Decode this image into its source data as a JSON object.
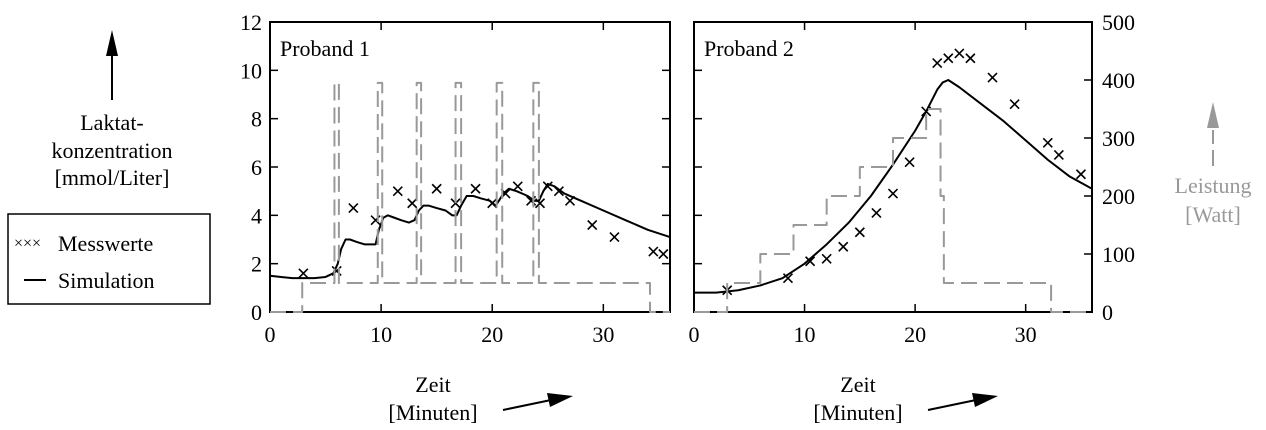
{
  "left_annotation": {
    "ylabel_lines": [
      "Laktat-",
      "konzentration",
      "[mmol/Liter]"
    ]
  },
  "legend": {
    "measured_marker": "×××",
    "measured_label": "Messwerte",
    "simulation_label": "Simulation"
  },
  "right_annotation": {
    "ylabel_lines": [
      "Leistung",
      "[Watt]"
    ]
  },
  "colors": {
    "lactate": "#000000",
    "power": "#999999",
    "axes": "#000000"
  },
  "chart_data": [
    {
      "type": "line",
      "panel_title": "Proband 1",
      "xlabel_lines": [
        "Zeit",
        "[Minuten]"
      ],
      "xlim": [
        0,
        36
      ],
      "xticks": [
        0,
        10,
        20,
        30
      ],
      "ylim_left": [
        0,
        12
      ],
      "yticks_left": [
        0,
        2,
        4,
        6,
        8,
        10,
        12
      ],
      "ylim_right": [
        0,
        500
      ],
      "yticks_right": [
        0,
        100,
        200,
        300,
        400,
        500
      ],
      "series": [
        {
          "name": "Messwerte",
          "axis": "left",
          "style": "markers-x",
          "x": [
            3,
            6,
            7.5,
            9.5,
            11.5,
            12.8,
            15,
            16.7,
            18.5,
            20,
            21.2,
            22.3,
            23.5,
            24.3,
            25,
            26,
            27,
            29,
            31,
            34.5,
            35.4
          ],
          "y": [
            1.6,
            1.7,
            4.3,
            3.8,
            5.0,
            4.5,
            5.1,
            4.5,
            5.1,
            4.5,
            4.9,
            5.2,
            4.6,
            4.5,
            5.2,
            5.0,
            4.6,
            3.6,
            3.1,
            2.5,
            2.4
          ]
        },
        {
          "name": "Simulation",
          "axis": "left",
          "style": "solid",
          "x": [
            0,
            1,
            2,
            3,
            4,
            5,
            5.7,
            6.1,
            6.4,
            6.8,
            7.2,
            7.8,
            8.5,
            9.5,
            9.8,
            10.2,
            10.6,
            11.2,
            11.8,
            12.5,
            13.0,
            13.4,
            13.8,
            14.3,
            15.0,
            15.8,
            16.4,
            16.8,
            17.2,
            17.7,
            18.3,
            19.0,
            19.8,
            20.3,
            20.6,
            21.0,
            21.5,
            22.2,
            23.2,
            23.8,
            24.2,
            24.6,
            25.0,
            25.6,
            26.5,
            28,
            30,
            32,
            34,
            36
          ],
          "y": [
            1.5,
            1.45,
            1.4,
            1.4,
            1.4,
            1.45,
            1.6,
            2.0,
            2.6,
            3.0,
            3.0,
            2.9,
            2.8,
            2.8,
            3.4,
            3.9,
            4.0,
            3.9,
            3.8,
            3.7,
            3.8,
            4.2,
            4.4,
            4.4,
            4.3,
            4.2,
            4.0,
            4.0,
            4.4,
            4.8,
            4.8,
            4.7,
            4.6,
            4.4,
            4.6,
            4.9,
            5.1,
            5.0,
            4.8,
            4.6,
            4.6,
            5.0,
            5.3,
            5.2,
            4.9,
            4.6,
            4.2,
            3.8,
            3.4,
            3.1
          ]
        },
        {
          "name": "Leistung",
          "axis": "right",
          "style": "dashed",
          "x": [
            0,
            2.9,
            2.9,
            5.8,
            5.8,
            6.2,
            6.2,
            9.7,
            9.7,
            10.1,
            10.1,
            13.2,
            13.2,
            13.6,
            13.6,
            16.7,
            16.7,
            17.2,
            17.2,
            20.4,
            20.4,
            20.9,
            20.9,
            23.7,
            23.7,
            24.2,
            24.2,
            34.2,
            34.2,
            36
          ],
          "y": [
            0,
            0,
            50,
            50,
            395,
            395,
            50,
            50,
            395,
            395,
            50,
            50,
            395,
            395,
            50,
            50,
            395,
            395,
            50,
            50,
            395,
            395,
            50,
            50,
            395,
            395,
            50,
            50,
            0,
            0
          ]
        }
      ]
    },
    {
      "type": "line",
      "panel_title": "Proband 2",
      "xlabel_lines": [
        "Zeit",
        "[Minuten]"
      ],
      "xlim": [
        0,
        36
      ],
      "xticks": [
        0,
        10,
        20,
        30
      ],
      "ylim_left": [
        0,
        12
      ],
      "ylim_right": [
        0,
        500
      ],
      "yticks_right": [
        0,
        100,
        200,
        300,
        400,
        500
      ],
      "series": [
        {
          "name": "Messwerte",
          "axis": "left",
          "style": "markers-x",
          "x": [
            3,
            8.5,
            10.5,
            12,
            13.5,
            15,
            16.5,
            18,
            19.5,
            21,
            22,
            23,
            24,
            25,
            27,
            29,
            32,
            33,
            35
          ],
          "y": [
            0.9,
            1.4,
            2.1,
            2.2,
            2.7,
            3.3,
            4.1,
            4.9,
            6.2,
            8.3,
            10.3,
            10.5,
            10.7,
            10.5,
            9.7,
            8.6,
            7.0,
            6.5,
            5.7
          ]
        },
        {
          "name": "Simulation",
          "axis": "left",
          "style": "solid",
          "x": [
            0,
            2,
            4,
            6,
            8,
            10,
            12,
            14,
            16,
            18,
            20,
            21,
            22,
            22.5,
            23,
            24,
            26,
            28,
            30,
            32,
            34,
            36
          ],
          "y": [
            0.8,
            0.8,
            0.9,
            1.1,
            1.4,
            2.0,
            2.8,
            3.7,
            4.8,
            6.1,
            7.5,
            8.3,
            9.2,
            9.5,
            9.6,
            9.3,
            8.6,
            7.9,
            7.1,
            6.3,
            5.6,
            5.1
          ]
        },
        {
          "name": "Leistung",
          "axis": "right",
          "style": "dashed",
          "x": [
            0,
            3,
            3,
            6,
            6,
            9,
            9,
            12,
            12,
            15,
            15,
            18,
            18,
            21,
            21,
            22.3,
            22.3,
            22.6,
            22.6,
            32.3,
            32.3,
            36
          ],
          "y": [
            0,
            0,
            50,
            50,
            100,
            100,
            150,
            150,
            200,
            200,
            250,
            250,
            300,
            300,
            350,
            350,
            200,
            200,
            50,
            50,
            0,
            0
          ]
        }
      ]
    }
  ]
}
